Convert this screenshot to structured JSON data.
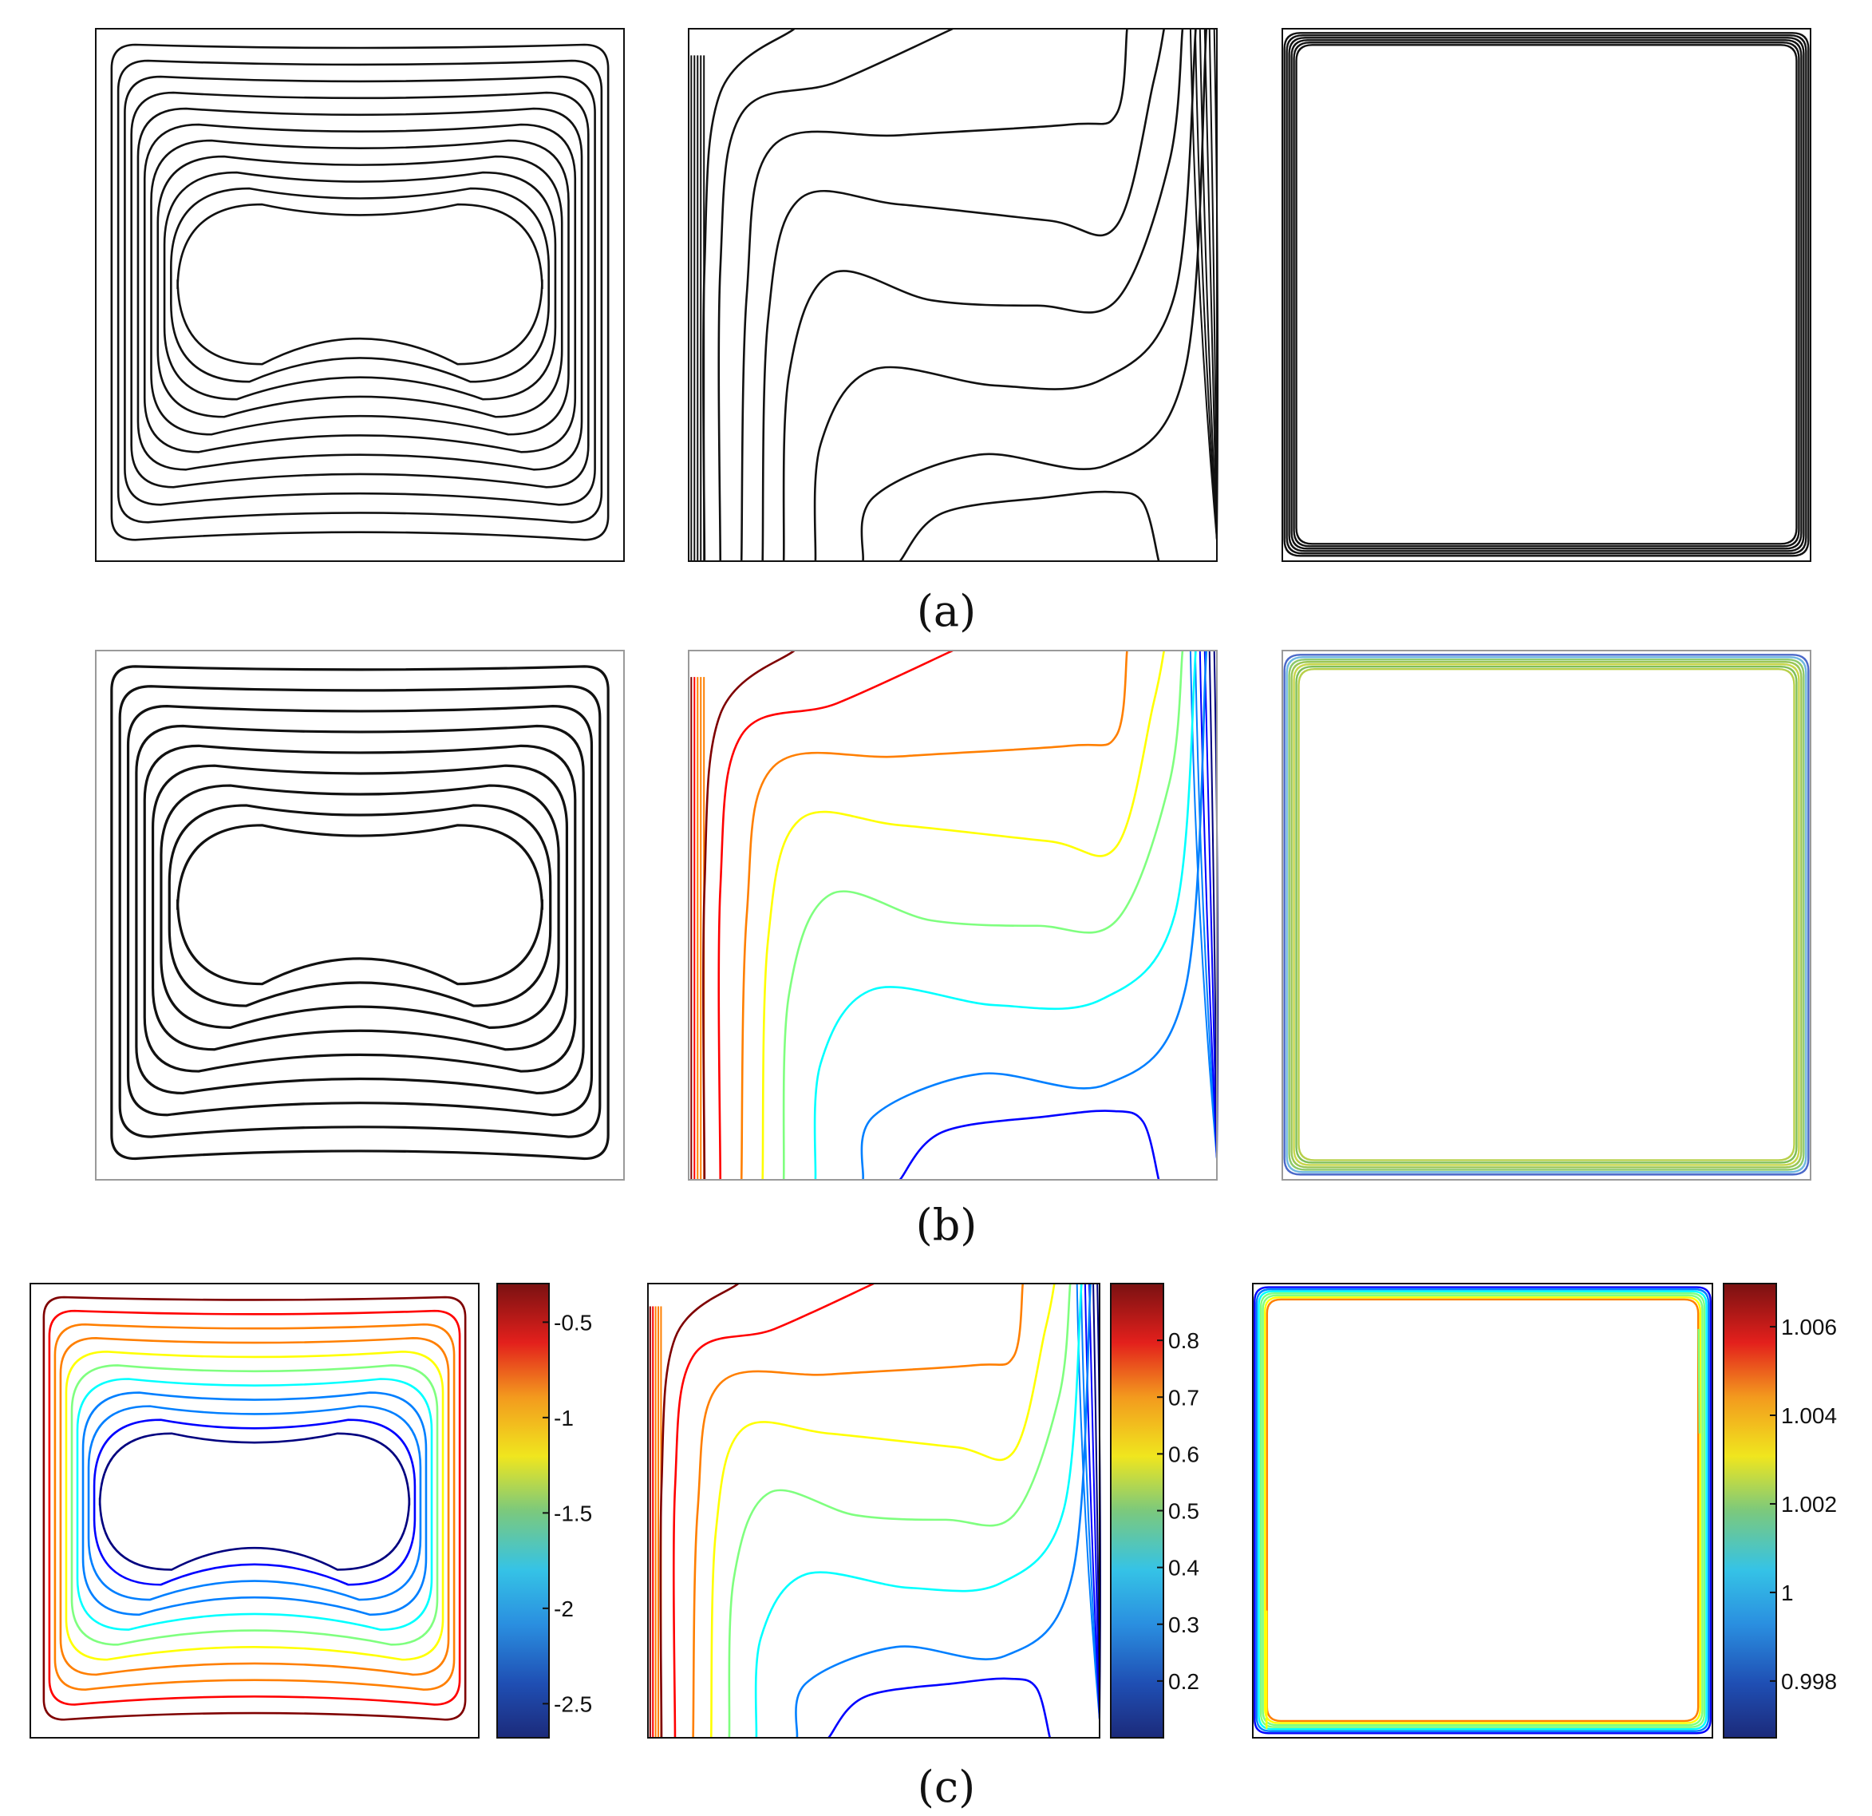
{
  "rows": [
    {
      "caption": "(a)"
    },
    {
      "caption": "(b)"
    },
    {
      "caption": "(c)"
    }
  ],
  "colorbars": [
    {
      "ticks": [
        "-0.5",
        "-1",
        "-1.5",
        "-2",
        "-2.5"
      ]
    },
    {
      "ticks": [
        "0.8",
        "0.7",
        "0.6",
        "0.5",
        "0.4",
        "0.3",
        "0.2"
      ]
    },
    {
      "ticks": [
        "1.006",
        "1.004",
        "1.002",
        "1",
        "0.998"
      ]
    }
  ],
  "colors": {
    "line_black": "#111111",
    "jet": [
      "#00007f",
      "#0000ff",
      "#007fff",
      "#00ffff",
      "#7fff7f",
      "#ffff00",
      "#ff7f00",
      "#ff0000",
      "#7f0000"
    ]
  }
}
